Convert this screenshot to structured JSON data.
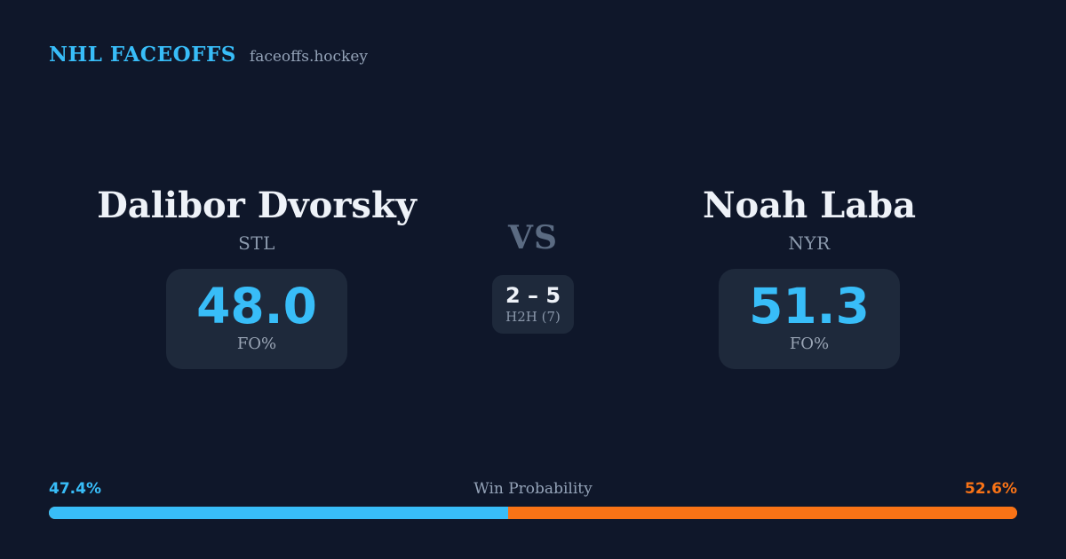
{
  "header": {
    "brand": "NHL FACEOFFS",
    "site": "faceoffs.hockey"
  },
  "matchup": {
    "vs_label": "VS",
    "h2h": {
      "score": "2 – 5",
      "label": "H2H (7)"
    },
    "players": [
      {
        "name": "Dalibor Dvorsky",
        "team": "STL",
        "stat_value": "48.0",
        "stat_label": "FO%"
      },
      {
        "name": "Noah Laba",
        "team": "NYR",
        "stat_value": "51.3",
        "stat_label": "FO%"
      }
    ]
  },
  "win_probability": {
    "title": "Win Probability",
    "left": {
      "label": "47.4%",
      "value": 47.4
    },
    "right": {
      "label": "52.6%",
      "value": 52.6
    }
  },
  "colors": {
    "background": "#0f172a",
    "card": "#1e293b",
    "accent_blue": "#38bdf8",
    "accent_orange": "#f97316",
    "text_primary": "#eef2f8",
    "text_muted": "#94a3b8",
    "vs_color": "#5b6b82"
  }
}
